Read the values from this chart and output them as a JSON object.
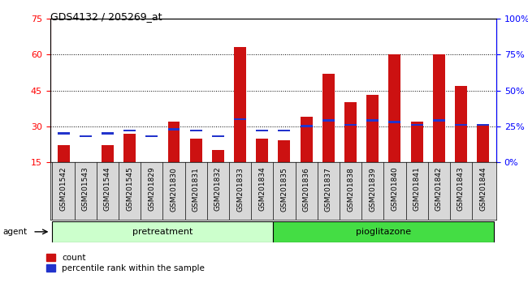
{
  "title": "GDS4132 / 205269_at",
  "categories": [
    "GSM201542",
    "GSM201543",
    "GSM201544",
    "GSM201545",
    "GSM201829",
    "GSM201830",
    "GSM201831",
    "GSM201832",
    "GSM201833",
    "GSM201834",
    "GSM201835",
    "GSM201836",
    "GSM201837",
    "GSM201838",
    "GSM201839",
    "GSM201840",
    "GSM201841",
    "GSM201842",
    "GSM201843",
    "GSM201844"
  ],
  "count_values": [
    22,
    15,
    22,
    27,
    15,
    32,
    25,
    20,
    63,
    25,
    24,
    34,
    52,
    40,
    43,
    60,
    32,
    60,
    47,
    31
  ],
  "percentile_values": [
    20,
    18,
    20,
    22,
    18,
    23,
    22,
    18,
    30,
    22,
    22,
    25,
    29,
    26,
    29,
    28,
    26,
    29,
    26,
    26
  ],
  "ylim_left": [
    15,
    75
  ],
  "ylim_right": [
    0,
    100
  ],
  "yticks_left": [
    15,
    30,
    45,
    60,
    75
  ],
  "yticks_right": [
    0,
    25,
    50,
    75,
    100
  ],
  "ytick_labels_right": [
    "0%",
    "25%",
    "50%",
    "75%",
    "100%"
  ],
  "bar_color_red": "#cc1111",
  "bar_color_blue": "#2233cc",
  "pretreat_color": "#ccffcc",
  "pioglit_color": "#44dd44",
  "bar_width": 0.55,
  "legend_count": "count",
  "legend_percentile": "percentile rank within the sample",
  "label_pretreatment": "pretreatment",
  "label_pioglitazone": "pioglitazone",
  "agent_label": "agent",
  "n_pretreat": 10,
  "n_pioglit": 10
}
